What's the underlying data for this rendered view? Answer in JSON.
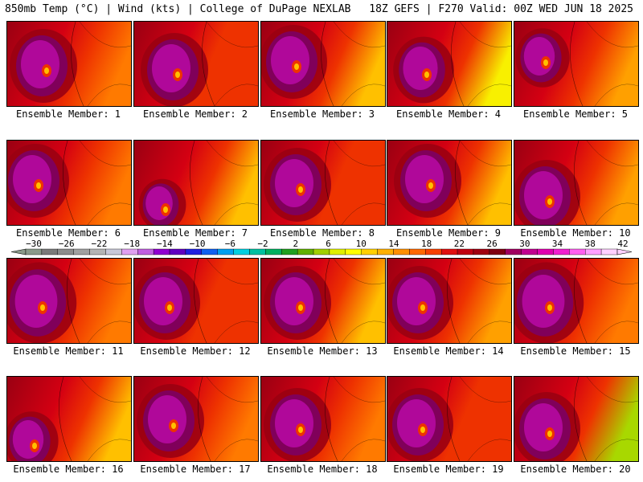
{
  "header": {
    "left": "850mb Temp (°C) | Wind (kts) | College of DuPage NEXLAB",
    "right": "18Z GEFS | F270 Valid: 00Z WED JUN 18 2025"
  },
  "member_prefix": "Ensemble Member: ",
  "members": [
    1,
    2,
    3,
    4,
    5,
    6,
    7,
    8,
    9,
    10,
    11,
    12,
    13,
    14,
    15,
    16,
    17,
    18,
    19,
    20
  ],
  "colorbar": {
    "tick_labels": [
      -30,
      -26,
      -22,
      -18,
      -14,
      -10,
      -6,
      -2,
      2,
      6,
      10,
      14,
      18,
      22,
      26,
      30,
      34,
      38,
      42
    ],
    "colors": [
      "#8a9a8a",
      "#7a7a7a",
      "#8c8c8c",
      "#a0a0a0",
      "#b4b4b4",
      "#c8c8d8",
      "#e0a0f0",
      "#c060e0",
      "#9000d0",
      "#6000c0",
      "#2020e0",
      "#1060f0",
      "#00a0f0",
      "#00d0e0",
      "#00c0a0",
      "#00b060",
      "#20a020",
      "#60b000",
      "#a0d000",
      "#e0f000",
      "#ffff00",
      "#ffd000",
      "#ffb000",
      "#ff9000",
      "#ff6800",
      "#f84000",
      "#e01010",
      "#c00010",
      "#a00010",
      "#800010",
      "#a00060",
      "#c00090",
      "#e000b0",
      "#f020d0",
      "#ff60f0",
      "#ffa0ff",
      "#ffd0ff"
    ]
  },
  "palette": {
    "magenta": "#b0089a",
    "dark_magenta": "#80005a",
    "dark_red": "#9a0012",
    "red": "#d40012",
    "red_orange": "#ee3200",
    "orange": "#ff7a00",
    "light_orange": "#ffa000",
    "amber": "#ffc000",
    "yellow": "#f8f000",
    "lime": "#a8d800"
  }
}
